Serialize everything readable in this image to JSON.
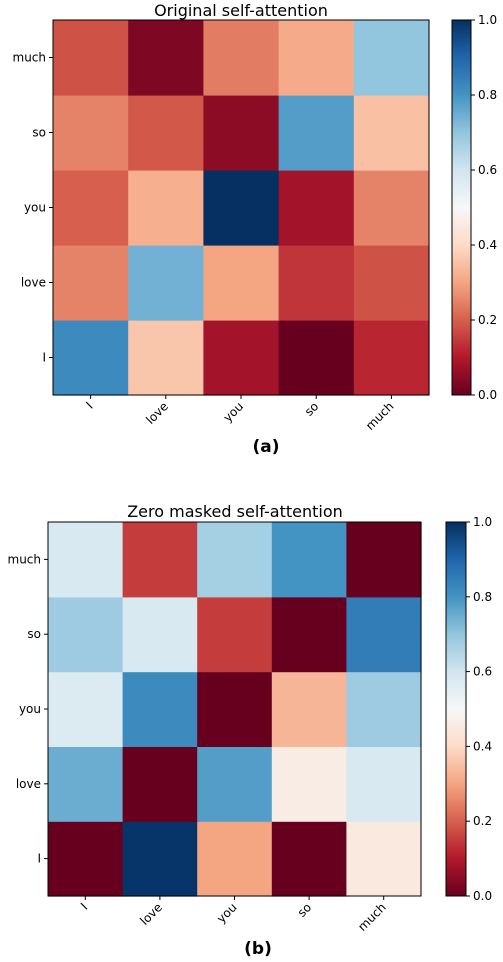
{
  "panels": [
    {
      "caption": "(a)",
      "chart_data": {
        "type": "heatmap",
        "title": "Original self-attention",
        "xlabel": "",
        "ylabel": "",
        "x_categories": [
          "I",
          "love",
          "you",
          "so",
          "much"
        ],
        "y_categories": [
          "I",
          "love",
          "you",
          "so",
          "much"
        ],
        "values": [
          [
            0.82,
            0.36,
            0.08,
            0.0,
            0.12
          ],
          [
            0.25,
            0.74,
            0.3,
            0.14,
            0.18
          ],
          [
            0.2,
            0.32,
            1.0,
            0.08,
            0.25
          ],
          [
            0.25,
            0.19,
            0.05,
            0.78,
            0.35
          ],
          [
            0.18,
            0.03,
            0.24,
            0.31,
            0.7
          ]
        ],
        "colormap": "RdBu",
        "vmin": 0.0,
        "vmax": 1.0,
        "colorbar_ticks": [
          "0.0",
          "0.2",
          "0.4",
          "0.6",
          "0.8",
          "1.0"
        ],
        "grid": false
      }
    },
    {
      "caption": "(b)",
      "chart_data": {
        "type": "heatmap",
        "title": "Zero masked self-attention",
        "xlabel": "",
        "ylabel": "",
        "x_categories": [
          "I",
          "love",
          "you",
          "so",
          "much"
        ],
        "y_categories": [
          "I",
          "love",
          "you",
          "so",
          "much"
        ],
        "values": [
          [
            0.0,
            0.99,
            0.3,
            0.0,
            0.45
          ],
          [
            0.75,
            0.0,
            0.78,
            0.46,
            0.58
          ],
          [
            0.57,
            0.82,
            0.0,
            0.33,
            0.68
          ],
          [
            0.68,
            0.58,
            0.15,
            0.0,
            0.85
          ],
          [
            0.58,
            0.15,
            0.67,
            0.8,
            0.0
          ]
        ],
        "colormap": "RdBu",
        "vmin": 0.0,
        "vmax": 1.0,
        "colorbar_ticks": [
          "0.0",
          "0.2",
          "0.4",
          "0.6",
          "0.8",
          "1.0"
        ],
        "grid": false
      }
    }
  ]
}
